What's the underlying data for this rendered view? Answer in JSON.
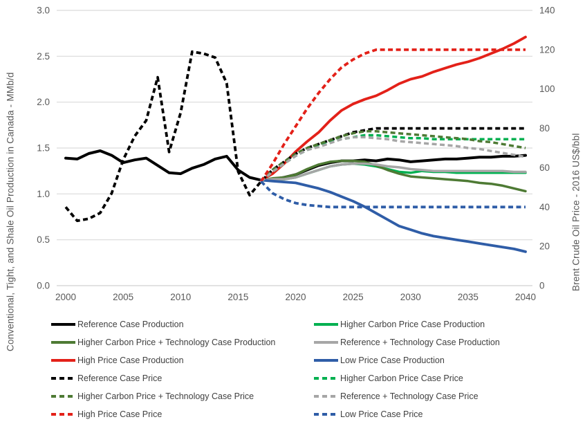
{
  "chart": {
    "left_axis": {
      "title": "Conventional, Tight, and Shale Oil Production in Canada - MMb/d",
      "ticks": [
        "3.0",
        "2.5",
        "2.0",
        "1.5",
        "1.0",
        "0.5",
        "0.0"
      ],
      "max": 3.0
    },
    "right_axis": {
      "title": "Brent Crude Oil Price - 2016 US$/bbl",
      "ticks": [
        "140",
        "120",
        "100",
        "80",
        "60",
        "40",
        "20",
        "0"
      ],
      "max": 140
    },
    "x_axis": {
      "ticks": [
        "2000",
        "2005",
        "2010",
        "2015",
        "2020",
        "2025",
        "2030",
        "2035",
        "2040"
      ]
    }
  },
  "colors": {
    "black": "#000000",
    "red": "#e32119",
    "dark_green": "#4e7a34",
    "bright_green": "#00b050",
    "gray": "#a6a6a6",
    "blue": "#2f5da7",
    "gridline": "#d9d9d9",
    "tick_text": "#595959",
    "legend_text": "#404040"
  },
  "chart_data": {
    "type": "line",
    "title": "",
    "x_min": 2000,
    "x_max": 2040,
    "left_ylim": [
      0,
      3.0
    ],
    "right_ylim": [
      0,
      140
    ],
    "grid": true,
    "legend_position": "bottom",
    "series": [
      {
        "name": "Reference Case Production",
        "slug": "reference-case-production",
        "axis": "left",
        "color": "#000000",
        "dash": false,
        "width": 4,
        "start_year": 2000,
        "values": [
          1.39,
          1.38,
          1.44,
          1.47,
          1.42,
          1.34,
          1.37,
          1.39,
          1.31,
          1.23,
          1.22,
          1.28,
          1.32,
          1.38,
          1.41,
          1.26,
          1.18,
          1.15,
          1.16,
          1.18,
          1.21,
          1.26,
          1.31,
          1.34,
          1.36,
          1.36,
          1.37,
          1.36,
          1.38,
          1.37,
          1.35,
          1.36,
          1.37,
          1.38,
          1.38,
          1.39,
          1.4,
          1.4,
          1.41,
          1.41,
          1.42
        ]
      },
      {
        "name": "Higher Carbon Price Case Production",
        "slug": "higher-carbon-price-case-production",
        "axis": "left",
        "color": "#00b050",
        "dash": false,
        "width": 3.5,
        "start_year": 2017,
        "values": [
          1.15,
          1.16,
          1.16,
          1.18,
          1.22,
          1.26,
          1.3,
          1.32,
          1.33,
          1.32,
          1.3,
          1.27,
          1.24,
          1.23,
          1.25,
          1.24,
          1.24,
          1.23,
          1.23,
          1.23,
          1.23,
          1.23,
          1.23,
          1.23
        ]
      },
      {
        "name": "Higher Carbon Price + Technology Case Production",
        "slug": "higher-carbon-price-technology-case-production",
        "axis": "left",
        "color": "#4e7a34",
        "dash": false,
        "width": 3.5,
        "start_year": 2017,
        "values": [
          1.15,
          1.17,
          1.18,
          1.21,
          1.27,
          1.32,
          1.35,
          1.36,
          1.36,
          1.35,
          1.31,
          1.26,
          1.22,
          1.19,
          1.18,
          1.17,
          1.16,
          1.15,
          1.14,
          1.12,
          1.11,
          1.09,
          1.06,
          1.03
        ]
      },
      {
        "name": "Reference + Technology Case Production",
        "slug": "reference-technology-case-production",
        "axis": "left",
        "color": "#a6a6a6",
        "dash": false,
        "width": 3.5,
        "start_year": 2017,
        "values": [
          1.15,
          1.16,
          1.16,
          1.18,
          1.22,
          1.26,
          1.3,
          1.32,
          1.33,
          1.33,
          1.32,
          1.3,
          1.29,
          1.27,
          1.26,
          1.25,
          1.25,
          1.25,
          1.25,
          1.25,
          1.25,
          1.25,
          1.24,
          1.24
        ]
      },
      {
        "name": "High Price Case Production",
        "slug": "high-price-case-production",
        "axis": "left",
        "color": "#e32119",
        "dash": false,
        "width": 3.8,
        "start_year": 2017,
        "values": [
          1.15,
          1.22,
          1.33,
          1.46,
          1.57,
          1.67,
          1.8,
          1.91,
          1.98,
          2.03,
          2.07,
          2.13,
          2.2,
          2.25,
          2.28,
          2.33,
          2.37,
          2.41,
          2.44,
          2.48,
          2.53,
          2.58,
          2.64,
          2.71
        ]
      },
      {
        "name": "Low Price Case Production",
        "slug": "low-price-case-production",
        "axis": "left",
        "color": "#2f5da7",
        "dash": false,
        "width": 3.8,
        "start_year": 2017,
        "values": [
          1.15,
          1.14,
          1.13,
          1.12,
          1.09,
          1.06,
          1.02,
          0.97,
          0.92,
          0.86,
          0.79,
          0.72,
          0.65,
          0.61,
          0.57,
          0.54,
          0.52,
          0.5,
          0.48,
          0.46,
          0.44,
          0.42,
          0.4,
          0.37
        ]
      },
      {
        "name": "Reference Case Price",
        "slug": "reference-case-price",
        "axis": "right",
        "color": "#000000",
        "dash": true,
        "width": 3.8,
        "start_year": 2000,
        "values": [
          40,
          33,
          34,
          37,
          47,
          64,
          76,
          84,
          106,
          68,
          88,
          119,
          118,
          116,
          103,
          58,
          46,
          53,
          59,
          63,
          67,
          70,
          72,
          74,
          76,
          78,
          79,
          80,
          80,
          80,
          80,
          80,
          80,
          80,
          80,
          80,
          80,
          80,
          80,
          80,
          80
        ]
      },
      {
        "name": "Higher Carbon Price Case Price",
        "slug": "higher-carbon-price-case-price",
        "axis": "right",
        "color": "#00b050",
        "dash": true,
        "width": 3.5,
        "start_year": 2017,
        "values": [
          53,
          58,
          62,
          66,
          69,
          71,
          73,
          74.5,
          75.5,
          76.5,
          76.5,
          76,
          75.5,
          75,
          75,
          74.5,
          74.5,
          74.5,
          74.5,
          74.5,
          74.5,
          74.5,
          74.5,
          74.5
        ]
      },
      {
        "name": "Higher Carbon Price + Technology Case Price",
        "slug": "higher-carbon-price-technology-case-price",
        "axis": "right",
        "color": "#4e7a34",
        "dash": true,
        "width": 3.5,
        "start_year": 2017,
        "values": [
          53,
          59,
          63,
          67,
          70,
          72,
          74,
          76,
          77.5,
          78.5,
          78.5,
          78,
          77.5,
          77,
          76.5,
          76,
          75.5,
          75,
          74.5,
          73.5,
          73,
          72,
          71,
          70
        ]
      },
      {
        "name": "Reference + Technology Case Price",
        "slug": "reference-technology-case-price",
        "axis": "right",
        "color": "#a6a6a6",
        "dash": true,
        "width": 3.5,
        "start_year": 2017,
        "values": [
          53,
          58,
          62,
          66,
          69,
          70.5,
          72.5,
          74.5,
          75.5,
          75.5,
          75,
          74.5,
          73.5,
          73,
          72.5,
          72,
          71.5,
          71,
          70,
          69.5,
          68.5,
          67.5,
          66.5,
          65.5
        ]
      },
      {
        "name": "High Price Case Price",
        "slug": "high-price-case-price",
        "axis": "right",
        "color": "#e32119",
        "dash": true,
        "width": 3.8,
        "start_year": 2017,
        "values": [
          53,
          62,
          72,
          81,
          90,
          98,
          105,
          111,
          115,
          118,
          120,
          120,
          120,
          120,
          120,
          120,
          120,
          120,
          120,
          120,
          120,
          120,
          120,
          120
        ]
      },
      {
        "name": "Low Price Case Price",
        "slug": "low-price-case-price",
        "axis": "right",
        "color": "#2f5da7",
        "dash": true,
        "width": 3.8,
        "start_year": 2017,
        "values": [
          53,
          47,
          44,
          42,
          41,
          40.5,
          40,
          40,
          40,
          40,
          40,
          40,
          40,
          40,
          40,
          40,
          40,
          40,
          40,
          40,
          40,
          40,
          40,
          40
        ]
      }
    ]
  },
  "legend": {
    "columns": [
      {
        "items": [
          {
            "label": "Reference Case Production",
            "color": "#000000",
            "dash": false
          },
          {
            "label": "Higher Carbon Price + Technology Case Production",
            "color": "#4e7a34",
            "dash": false
          },
          {
            "label": "High Price Case Production",
            "color": "#e32119",
            "dash": false
          },
          {
            "label": "Reference Case Price",
            "color": "#000000",
            "dash": true
          },
          {
            "label": "Higher Carbon Price + Technology Case Price",
            "color": "#4e7a34",
            "dash": true
          },
          {
            "label": "High Price Case Price",
            "color": "#e32119",
            "dash": true
          }
        ]
      },
      {
        "items": [
          {
            "label": "Higher Carbon Price Case Production",
            "color": "#00b050",
            "dash": false
          },
          {
            "label": "Reference + Technology Case Production",
            "color": "#a6a6a6",
            "dash": false
          },
          {
            "label": "Low Price Case Production",
            "color": "#2f5da7",
            "dash": false
          },
          {
            "label": "Higher Carbon Price Case Price",
            "color": "#00b050",
            "dash": true
          },
          {
            "label": "Reference + Technology Case Price",
            "color": "#a6a6a6",
            "dash": true
          },
          {
            "label": "Low Price Case Price",
            "color": "#2f5da7",
            "dash": true
          }
        ]
      }
    ]
  }
}
